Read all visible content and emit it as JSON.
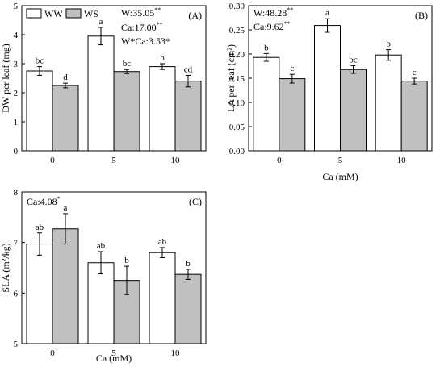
{
  "legend": {
    "ww": "WW",
    "ws": "WS",
    "ww_color": "#ffffff",
    "ws_color": "#c0c0c0"
  },
  "chart_data": [
    {
      "type": "bar",
      "panel": "(A)",
      "ylabel": "DW per leaf (mg)",
      "xlabel": "",
      "categories": [
        "0",
        "5",
        "10"
      ],
      "ylim": [
        0,
        5
      ],
      "yticks": [
        "0",
        "1",
        "2",
        "3",
        "4",
        "5"
      ],
      "series": [
        {
          "name": "WW",
          "color": "#ffffff",
          "values": [
            2.75,
            3.95,
            2.9
          ],
          "errors": [
            0.15,
            0.3,
            0.1
          ],
          "letters": [
            "bc",
            "a",
            "b"
          ]
        },
        {
          "name": "WS",
          "color": "#c0c0c0",
          "values": [
            2.25,
            2.73,
            2.4
          ],
          "errors": [
            0.08,
            0.07,
            0.2
          ],
          "letters": [
            "d",
            "bc",
            "cd"
          ]
        }
      ],
      "annotations": [
        {
          "base": "W:35.05",
          "sup": "**"
        },
        {
          "base": "Ca:17.00",
          "sup": "**"
        },
        {
          "base": "W*Ca:3.53*",
          "sup": ""
        }
      ],
      "legend": "top-left"
    },
    {
      "type": "bar",
      "panel": "(B)",
      "ylabel": "LA per leaf (cm²)",
      "xlabel": "Ca (mM)",
      "categories": [
        "0",
        "5",
        "10"
      ],
      "ylim": [
        0,
        0.3
      ],
      "yticks": [
        "0.00",
        "0.05",
        "0.10",
        "0.15",
        "0.20",
        "0.25",
        "0.30"
      ],
      "series": [
        {
          "name": "WW",
          "color": "#ffffff",
          "values": [
            0.193,
            0.259,
            0.198
          ],
          "errors": [
            0.008,
            0.014,
            0.011
          ],
          "letters": [
            "b",
            "a",
            "b"
          ]
        },
        {
          "name": "WS",
          "color": "#c0c0c0",
          "values": [
            0.149,
            0.168,
            0.144
          ],
          "errors": [
            0.009,
            0.008,
            0.006
          ],
          "letters": [
            "c",
            "bc",
            "c"
          ]
        }
      ],
      "annotations": [
        {
          "base": "W:48.28",
          "sup": "**"
        },
        {
          "base": "Ca:9.62",
          "sup": "**"
        }
      ]
    },
    {
      "type": "bar",
      "panel": "(C)",
      "ylabel": "SLA (m²/kg)",
      "xlabel": "Ca (mM)",
      "categories": [
        "0",
        "5",
        "10"
      ],
      "ylim": [
        5,
        8
      ],
      "yticks": [
        "5",
        "6",
        "7",
        "8"
      ],
      "series": [
        {
          "name": "WW",
          "color": "#ffffff",
          "values": [
            6.97,
            6.6,
            6.8
          ],
          "errors": [
            0.22,
            0.22,
            0.1
          ],
          "letters": [
            "ab",
            "ab",
            "ab"
          ]
        },
        {
          "name": "WS",
          "color": "#c0c0c0",
          "values": [
            7.27,
            6.25,
            6.37
          ],
          "errors": [
            0.3,
            0.28,
            0.1
          ],
          "letters": [
            "a",
            "b",
            "b"
          ]
        }
      ],
      "annotations": [
        {
          "base": "Ca:4.08",
          "sup": "*"
        }
      ]
    }
  ]
}
